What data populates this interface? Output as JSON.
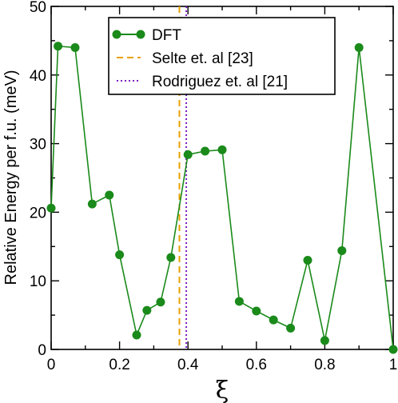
{
  "chart_data": {
    "type": "line",
    "xlabel": "ξ",
    "ylabel": "Relative Energy per f.u. (meV)",
    "xlim": [
      0,
      1
    ],
    "ylim": [
      0,
      50
    ],
    "x_ticks": [
      "0",
      "0.2",
      "0.4",
      "0.6",
      "0.8",
      "1"
    ],
    "x_tick_values": [
      0,
      0.2,
      0.4,
      0.6,
      0.8,
      1
    ],
    "y_ticks": [
      "0",
      "10",
      "20",
      "30",
      "40",
      "50"
    ],
    "y_tick_values": [
      0,
      10,
      20,
      30,
      40,
      50
    ],
    "grid": false,
    "legend_position": "top-center",
    "series": [
      {
        "name": "DFT",
        "color": "#1a8a1a",
        "marker": "circle",
        "x": [
          0.0,
          0.02,
          0.07,
          0.12,
          0.17,
          0.2,
          0.25,
          0.28,
          0.32,
          0.35,
          0.4,
          0.45,
          0.5,
          0.55,
          0.6,
          0.65,
          0.7,
          0.75,
          0.8,
          0.85,
          0.9,
          1.0
        ],
        "y": [
          20.6,
          44.2,
          44.0,
          21.2,
          22.5,
          13.8,
          2.1,
          5.7,
          6.9,
          13.4,
          28.4,
          28.9,
          29.1,
          7.0,
          5.6,
          4.3,
          3.1,
          13.0,
          1.3,
          14.4,
          44.0,
          0.0
        ]
      }
    ],
    "reference_lines": [
      {
        "name": "Selte et. al [23]",
        "x": 0.375,
        "color": "#e8a000",
        "style": "dashed"
      },
      {
        "name": "Rodriguez et. al [21]",
        "x": 0.395,
        "color": "#7a20c0",
        "style": "dotted"
      }
    ]
  }
}
